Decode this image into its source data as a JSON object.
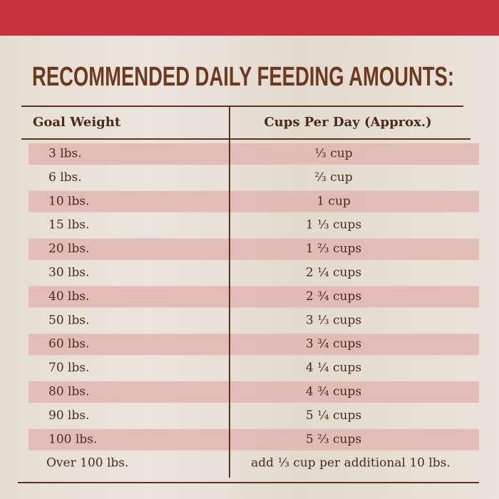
{
  "header": {
    "title": "RECOMMENDED DAILY FEEDING AMOUNTS:"
  },
  "table": {
    "columns": [
      "Goal Weight",
      "Cups Per Day (Approx.)"
    ],
    "rows": [
      [
        "3 lbs.",
        "⅓ cup"
      ],
      [
        "6 lbs.",
        "⅔ cup"
      ],
      [
        "10 lbs.",
        "1 cup"
      ],
      [
        "15 lbs.",
        "1 ⅓ cups"
      ],
      [
        "20 lbs.",
        "1 ⅔ cups"
      ],
      [
        "30 lbs.",
        "2 ¼ cups"
      ],
      [
        "40 lbs.",
        "2 ¾ cups"
      ],
      [
        "50 lbs.",
        "3 ⅓ cups"
      ],
      [
        "60 lbs.",
        "3 ¾ cups"
      ],
      [
        "70 lbs.",
        "4 ¼ cups"
      ],
      [
        "80 lbs.",
        "4 ¾ cups"
      ],
      [
        "90 lbs.",
        "5 ¼ cups"
      ],
      [
        "100 lbs.",
        "5 ⅔ cups"
      ],
      [
        "Over 100 lbs.",
        "add ⅓ cup per additional 10 lbs."
      ]
    ]
  }
}
